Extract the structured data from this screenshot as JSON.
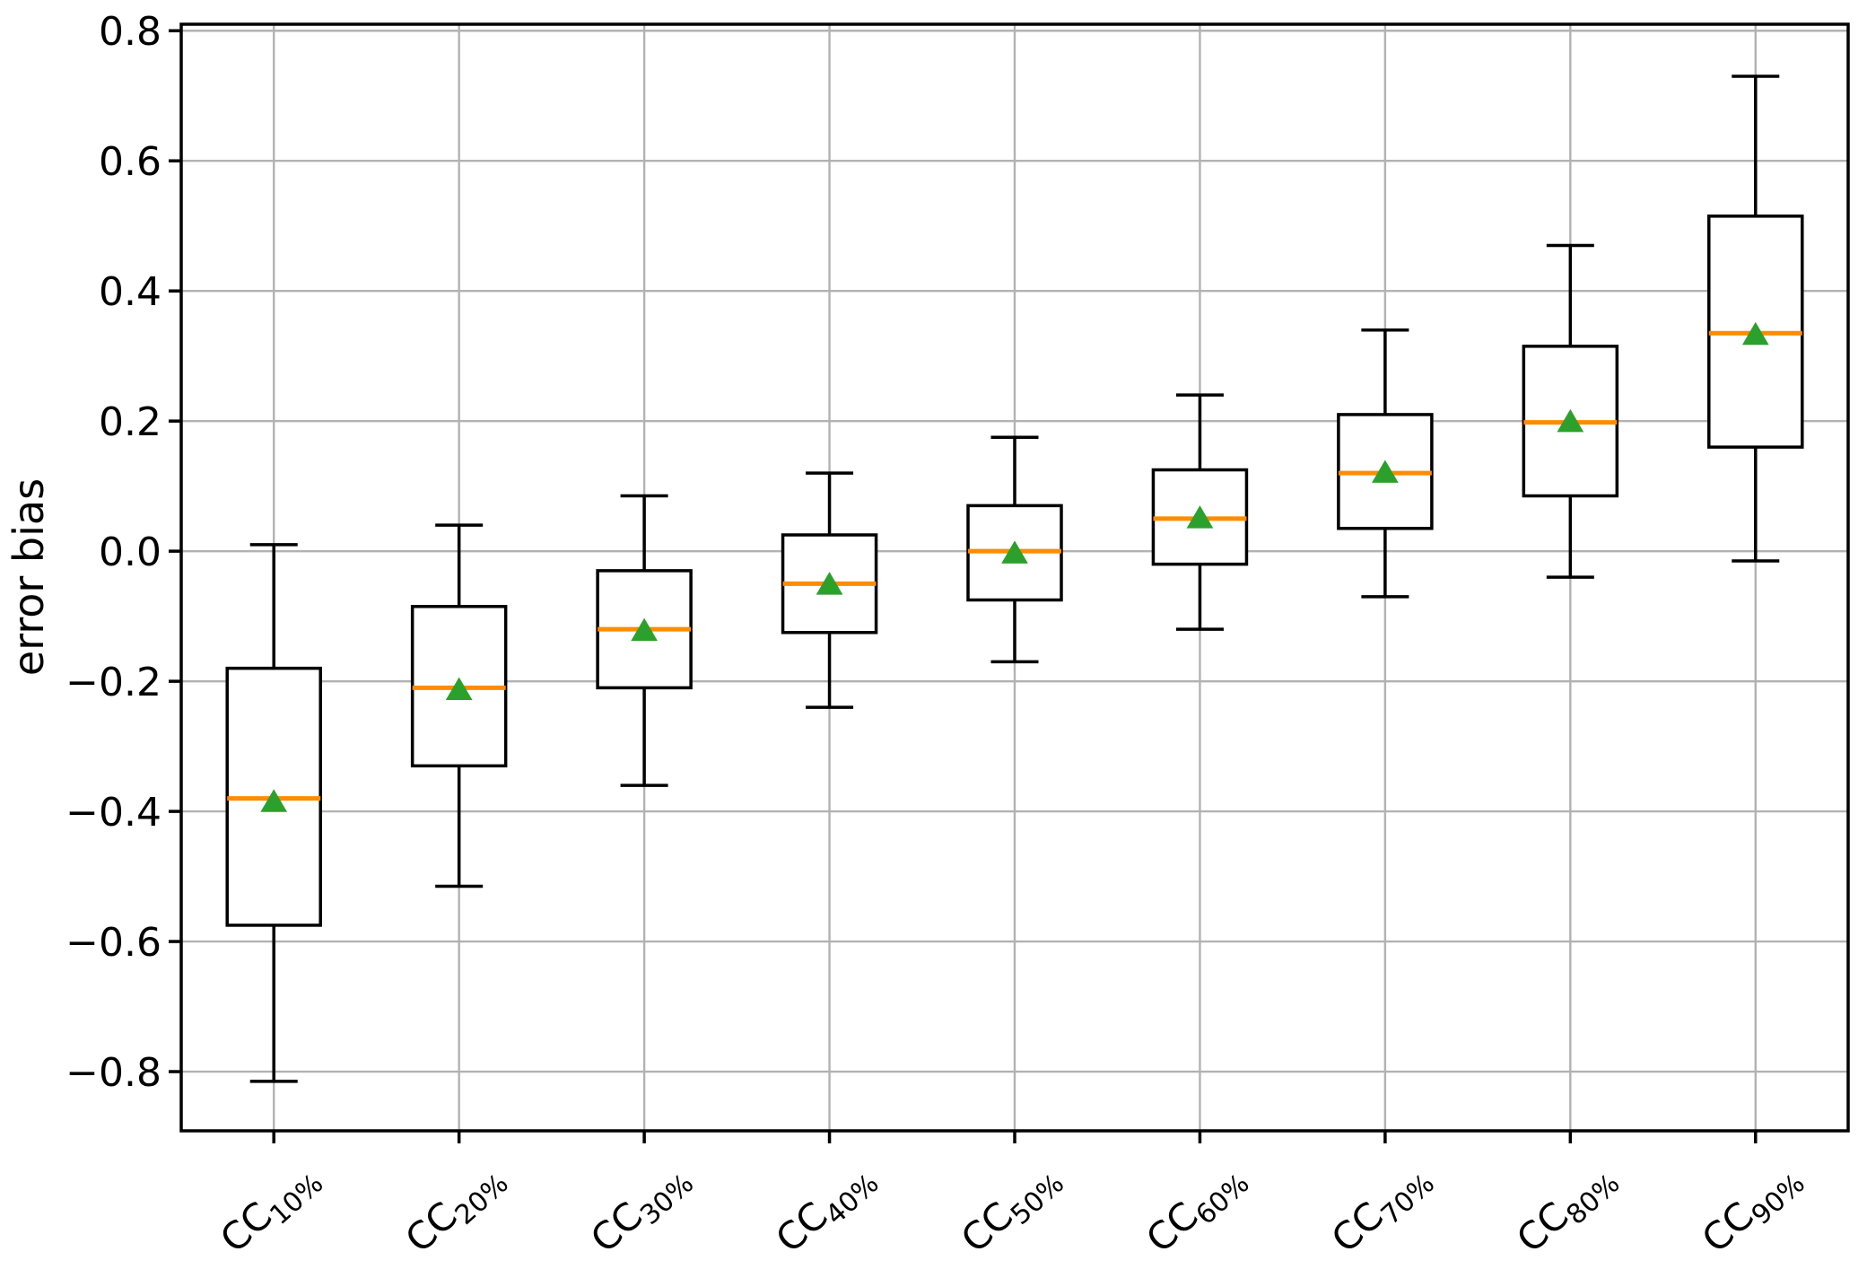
{
  "figure": {
    "background": "#ffffff"
  },
  "chart_data": {
    "type": "boxplot",
    "title": "",
    "xlabel": "",
    "ylabel": "error bias",
    "ylim": [
      -0.891,
      0.81
    ],
    "grid": true,
    "legend": "none",
    "marker_note": "green upward triangle = mean, orange line = median",
    "yticks": [
      {
        "label": "0.8",
        "value": 0.8
      },
      {
        "label": "0.6",
        "value": 0.6
      },
      {
        "label": "0.4",
        "value": 0.4
      },
      {
        "label": "0.2",
        "value": 0.2
      },
      {
        "label": "0.0",
        "value": 0.0
      },
      {
        "label": "−0.2",
        "value": -0.2
      },
      {
        "label": "−0.4",
        "value": -0.4
      },
      {
        "label": "−0.6",
        "value": -0.6
      },
      {
        "label": "−0.8",
        "value": -0.8
      }
    ],
    "categories": [
      {
        "main": "CC",
        "sub": "10%"
      },
      {
        "main": "CC",
        "sub": "20%"
      },
      {
        "main": "CC",
        "sub": "30%"
      },
      {
        "main": "CC",
        "sub": "40%"
      },
      {
        "main": "CC",
        "sub": "50%"
      },
      {
        "main": "CC",
        "sub": "60%"
      },
      {
        "main": "CC",
        "sub": "70%"
      },
      {
        "main": "CC",
        "sub": "80%"
      },
      {
        "main": "CC",
        "sub": "90%"
      }
    ],
    "boxes": [
      {
        "label": "CC10%",
        "whisker_low": -0.815,
        "q1": -0.575,
        "median": -0.38,
        "mean": -0.385,
        "q3": -0.18,
        "whisker_high": 0.01
      },
      {
        "label": "CC20%",
        "whisker_low": -0.515,
        "q1": -0.33,
        "median": -0.21,
        "mean": -0.213,
        "q3": -0.085,
        "whisker_high": 0.04
      },
      {
        "label": "CC30%",
        "whisker_low": -0.36,
        "q1": -0.21,
        "median": -0.12,
        "mean": -0.122,
        "q3": -0.03,
        "whisker_high": 0.085
      },
      {
        "label": "CC40%",
        "whisker_low": -0.24,
        "q1": -0.125,
        "median": -0.05,
        "mean": -0.051,
        "q3": 0.025,
        "whisker_high": 0.12
      },
      {
        "label": "CC50%",
        "whisker_low": -0.17,
        "q1": -0.075,
        "median": 0.0,
        "mean": -0.003,
        "q3": 0.07,
        "whisker_high": 0.175
      },
      {
        "label": "CC60%",
        "whisker_low": -0.12,
        "q1": -0.02,
        "median": 0.05,
        "mean": 0.051,
        "q3": 0.125,
        "whisker_high": 0.24
      },
      {
        "label": "CC70%",
        "whisker_low": -0.07,
        "q1": 0.035,
        "median": 0.12,
        "mean": 0.121,
        "q3": 0.21,
        "whisker_high": 0.34
      },
      {
        "label": "CC80%",
        "whisker_low": -0.04,
        "q1": 0.085,
        "median": 0.198,
        "mean": 0.199,
        "q3": 0.315,
        "whisker_high": 0.47
      },
      {
        "label": "CC90%",
        "whisker_low": -0.015,
        "q1": 0.16,
        "median": 0.335,
        "mean": 0.333,
        "q3": 0.515,
        "whisker_high": 0.73
      }
    ],
    "colors": {
      "box": "#000000",
      "whisker": "#000000",
      "median": "#ff8c00",
      "mean": "#2ca02c",
      "grid": "#b2b2b2",
      "spine": "#000000",
      "text": "#000000",
      "background": "#ffffff"
    }
  }
}
